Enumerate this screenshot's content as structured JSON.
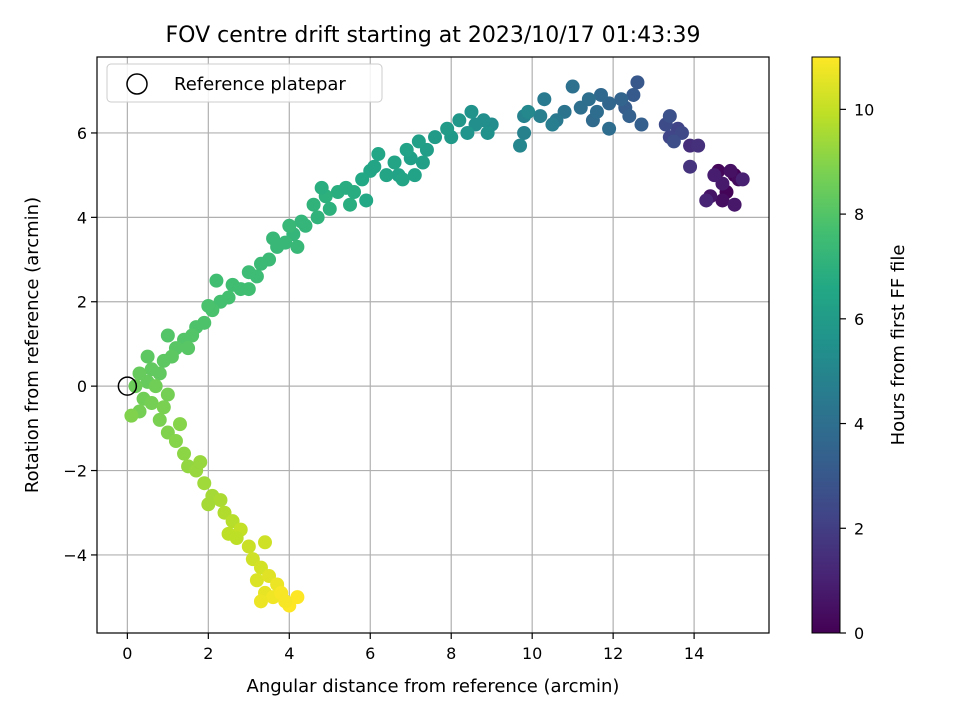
{
  "chart_data": {
    "type": "scatter",
    "title": "FOV centre drift starting at 2023/10/17 01:43:39",
    "xlabel": "Angular distance from reference (arcmin)",
    "ylabel": "Rotation from reference (arcmin)",
    "xlim": [
      -0.75,
      15.85
    ],
    "ylim": [
      -5.85,
      7.8
    ],
    "xticks": [
      0,
      2,
      4,
      6,
      8,
      10,
      12,
      14
    ],
    "yticks": [
      -4,
      -2,
      0,
      2,
      4,
      6
    ],
    "grid": true,
    "legend": {
      "position": "top-left",
      "entries": [
        "Reference platepar"
      ]
    },
    "reference_point": {
      "x": 0,
      "y": 0
    },
    "colorbar": {
      "label": "Hours from first FF file",
      "range": [
        0,
        11
      ],
      "ticks": [
        0,
        2,
        4,
        6,
        8,
        10
      ],
      "colormap": "viridis"
    },
    "points": [
      {
        "x": 15.0,
        "y": 5.0,
        "t": 0.0
      },
      {
        "x": 14.8,
        "y": 4.6,
        "t": 0.1
      },
      {
        "x": 14.6,
        "y": 5.1,
        "t": 0.2
      },
      {
        "x": 15.1,
        "y": 4.9,
        "t": 0.3
      },
      {
        "x": 14.7,
        "y": 4.4,
        "t": 0.4
      },
      {
        "x": 14.9,
        "y": 5.1,
        "t": 0.5
      },
      {
        "x": 14.4,
        "y": 4.5,
        "t": 0.6
      },
      {
        "x": 15.0,
        "y": 4.3,
        "t": 0.7
      },
      {
        "x": 14.7,
        "y": 4.8,
        "t": 0.8
      },
      {
        "x": 14.5,
        "y": 5.0,
        "t": 0.9
      },
      {
        "x": 15.2,
        "y": 4.9,
        "t": 1.0
      },
      {
        "x": 14.3,
        "y": 4.4,
        "t": 1.1
      },
      {
        "x": 13.9,
        "y": 5.7,
        "t": 1.4
      },
      {
        "x": 14.1,
        "y": 5.7,
        "t": 1.5
      },
      {
        "x": 13.9,
        "y": 5.2,
        "t": 1.6
      },
      {
        "x": 13.6,
        "y": 6.1,
        "t": 2.2
      },
      {
        "x": 13.4,
        "y": 5.9,
        "t": 2.3
      },
      {
        "x": 13.7,
        "y": 6.0,
        "t": 2.4
      },
      {
        "x": 13.3,
        "y": 6.2,
        "t": 2.5
      },
      {
        "x": 13.5,
        "y": 5.8,
        "t": 2.6
      },
      {
        "x": 13.4,
        "y": 6.4,
        "t": 2.7
      },
      {
        "x": 12.6,
        "y": 7.2,
        "t": 3.0
      },
      {
        "x": 12.5,
        "y": 6.9,
        "t": 3.1
      },
      {
        "x": 12.3,
        "y": 6.6,
        "t": 3.2
      },
      {
        "x": 12.7,
        "y": 6.2,
        "t": 3.3
      },
      {
        "x": 12.4,
        "y": 6.4,
        "t": 3.4
      },
      {
        "x": 12.2,
        "y": 6.8,
        "t": 3.5
      },
      {
        "x": 11.9,
        "y": 6.7,
        "t": 3.6
      },
      {
        "x": 11.7,
        "y": 6.9,
        "t": 3.7
      },
      {
        "x": 11.5,
        "y": 6.3,
        "t": 3.8
      },
      {
        "x": 11.9,
        "y": 6.1,
        "t": 3.9
      },
      {
        "x": 11.2,
        "y": 6.6,
        "t": 4.0
      },
      {
        "x": 11.0,
        "y": 7.1,
        "t": 4.1
      },
      {
        "x": 10.8,
        "y": 6.5,
        "t": 4.2
      },
      {
        "x": 11.4,
        "y": 6.8,
        "t": 4.0
      },
      {
        "x": 11.6,
        "y": 6.5,
        "t": 3.9
      },
      {
        "x": 10.6,
        "y": 6.3,
        "t": 4.4
      },
      {
        "x": 10.3,
        "y": 6.8,
        "t": 4.5
      },
      {
        "x": 10.5,
        "y": 6.2,
        "t": 4.6
      },
      {
        "x": 10.2,
        "y": 6.4,
        "t": 4.7
      },
      {
        "x": 9.8,
        "y": 6.0,
        "t": 4.8
      },
      {
        "x": 9.8,
        "y": 6.4,
        "t": 4.9
      },
      {
        "x": 9.7,
        "y": 5.7,
        "t": 5.0
      },
      {
        "x": 9.9,
        "y": 6.5,
        "t": 5.1
      },
      {
        "x": 9.0,
        "y": 6.2,
        "t": 5.3
      },
      {
        "x": 8.8,
        "y": 6.3,
        "t": 5.4
      },
      {
        "x": 8.9,
        "y": 6.0,
        "t": 5.5
      },
      {
        "x": 8.6,
        "y": 6.2,
        "t": 5.4
      },
      {
        "x": 8.5,
        "y": 6.5,
        "t": 5.6
      },
      {
        "x": 8.4,
        "y": 6.0,
        "t": 5.7
      },
      {
        "x": 8.2,
        "y": 6.3,
        "t": 5.8
      },
      {
        "x": 8.0,
        "y": 5.9,
        "t": 5.9
      },
      {
        "x": 7.9,
        "y": 6.1,
        "t": 6.0
      },
      {
        "x": 7.6,
        "y": 5.9,
        "t": 6.0
      },
      {
        "x": 7.4,
        "y": 5.6,
        "t": 6.1
      },
      {
        "x": 7.2,
        "y": 5.8,
        "t": 6.2
      },
      {
        "x": 7.0,
        "y": 5.4,
        "t": 6.2
      },
      {
        "x": 6.9,
        "y": 5.6,
        "t": 6.3
      },
      {
        "x": 6.7,
        "y": 5.0,
        "t": 6.3
      },
      {
        "x": 6.6,
        "y": 5.3,
        "t": 6.4
      },
      {
        "x": 6.4,
        "y": 5.0,
        "t": 6.4
      },
      {
        "x": 6.2,
        "y": 5.5,
        "t": 6.5
      },
      {
        "x": 6.0,
        "y": 5.1,
        "t": 6.5
      },
      {
        "x": 5.8,
        "y": 4.9,
        "t": 6.6
      },
      {
        "x": 7.1,
        "y": 5.0,
        "t": 6.3
      },
      {
        "x": 6.8,
        "y": 4.9,
        "t": 6.4
      },
      {
        "x": 7.3,
        "y": 5.3,
        "t": 6.2
      },
      {
        "x": 5.6,
        "y": 4.6,
        "t": 6.8
      },
      {
        "x": 5.5,
        "y": 4.3,
        "t": 6.9
      },
      {
        "x": 5.2,
        "y": 4.6,
        "t": 6.9
      },
      {
        "x": 5.0,
        "y": 4.2,
        "t": 7.0
      },
      {
        "x": 4.9,
        "y": 4.5,
        "t": 7.0
      },
      {
        "x": 4.7,
        "y": 4.0,
        "t": 7.1
      },
      {
        "x": 4.6,
        "y": 4.3,
        "t": 7.1
      },
      {
        "x": 4.4,
        "y": 3.8,
        "t": 7.2
      },
      {
        "x": 4.3,
        "y": 3.9,
        "t": 7.2
      },
      {
        "x": 4.1,
        "y": 3.6,
        "t": 7.2
      },
      {
        "x": 4.0,
        "y": 3.8,
        "t": 7.3
      },
      {
        "x": 3.9,
        "y": 3.4,
        "t": 7.3
      },
      {
        "x": 3.7,
        "y": 3.3,
        "t": 7.3
      },
      {
        "x": 3.5,
        "y": 3.0,
        "t": 7.4
      },
      {
        "x": 3.3,
        "y": 2.9,
        "t": 7.4
      },
      {
        "x": 3.2,
        "y": 2.6,
        "t": 7.5
      },
      {
        "x": 3.0,
        "y": 2.7,
        "t": 7.5
      },
      {
        "x": 2.8,
        "y": 2.3,
        "t": 7.6
      },
      {
        "x": 2.6,
        "y": 2.4,
        "t": 7.6
      },
      {
        "x": 2.5,
        "y": 2.1,
        "t": 7.7
      },
      {
        "x": 2.3,
        "y": 2.0,
        "t": 7.7
      },
      {
        "x": 2.1,
        "y": 1.8,
        "t": 7.8
      },
      {
        "x": 2.0,
        "y": 1.9,
        "t": 7.8
      },
      {
        "x": 1.9,
        "y": 1.5,
        "t": 7.9
      },
      {
        "x": 1.7,
        "y": 1.4,
        "t": 7.9
      },
      {
        "x": 1.6,
        "y": 1.2,
        "t": 8.0
      },
      {
        "x": 1.4,
        "y": 1.1,
        "t": 8.0
      },
      {
        "x": 1.2,
        "y": 0.9,
        "t": 8.1
      },
      {
        "x": 1.1,
        "y": 0.7,
        "t": 8.2
      },
      {
        "x": 0.9,
        "y": 0.6,
        "t": 8.2
      },
      {
        "x": 0.8,
        "y": 0.3,
        "t": 8.3
      },
      {
        "x": 0.6,
        "y": 0.4,
        "t": 8.3
      },
      {
        "x": 0.5,
        "y": 0.1,
        "t": 8.4
      },
      {
        "x": 0.3,
        "y": 0.3,
        "t": 8.4
      },
      {
        "x": 0.2,
        "y": 0.0,
        "t": 8.5
      },
      {
        "x": 0.4,
        "y": -0.3,
        "t": 8.6
      },
      {
        "x": 0.3,
        "y": -0.6,
        "t": 8.7
      },
      {
        "x": 0.6,
        "y": -0.4,
        "t": 8.7
      },
      {
        "x": 0.8,
        "y": -0.8,
        "t": 8.8
      },
      {
        "x": 0.9,
        "y": -0.5,
        "t": 8.8
      },
      {
        "x": 1.0,
        "y": -1.1,
        "t": 8.9
      },
      {
        "x": 1.2,
        "y": -1.3,
        "t": 9.0
      },
      {
        "x": 1.4,
        "y": -1.6,
        "t": 9.1
      },
      {
        "x": 1.5,
        "y": -1.9,
        "t": 9.2
      },
      {
        "x": 1.7,
        "y": -2.0,
        "t": 9.3
      },
      {
        "x": 1.9,
        "y": -2.3,
        "t": 9.4
      },
      {
        "x": 1.8,
        "y": -1.8,
        "t": 9.3
      },
      {
        "x": 2.1,
        "y": -2.6,
        "t": 9.5
      },
      {
        "x": 2.3,
        "y": -2.7,
        "t": 9.6
      },
      {
        "x": 2.4,
        "y": -3.0,
        "t": 9.7
      },
      {
        "x": 2.6,
        "y": -3.2,
        "t": 9.8
      },
      {
        "x": 2.5,
        "y": -3.5,
        "t": 9.9
      },
      {
        "x": 2.8,
        "y": -3.4,
        "t": 10.0
      },
      {
        "x": 3.0,
        "y": -3.8,
        "t": 10.1
      },
      {
        "x": 3.1,
        "y": -4.1,
        "t": 10.2
      },
      {
        "x": 3.3,
        "y": -4.3,
        "t": 10.3
      },
      {
        "x": 3.2,
        "y": -4.6,
        "t": 10.4
      },
      {
        "x": 3.5,
        "y": -4.5,
        "t": 10.5
      },
      {
        "x": 3.4,
        "y": -4.9,
        "t": 10.6
      },
      {
        "x": 3.7,
        "y": -4.7,
        "t": 10.7
      },
      {
        "x": 3.6,
        "y": -5.0,
        "t": 10.8
      },
      {
        "x": 3.8,
        "y": -4.9,
        "t": 10.9
      },
      {
        "x": 4.0,
        "y": -5.2,
        "t": 11.0
      },
      {
        "x": 4.2,
        "y": -5.0,
        "t": 11.0
      },
      {
        "x": 3.9,
        "y": -5.1,
        "t": 10.9
      },
      {
        "x": 3.3,
        "y": -5.1,
        "t": 10.7
      },
      {
        "x": 1.0,
        "y": -0.2,
        "t": 8.7
      },
      {
        "x": 0.7,
        "y": 0.0,
        "t": 8.6
      },
      {
        "x": 1.3,
        "y": -0.9,
        "t": 9.0
      },
      {
        "x": 2.0,
        "y": -2.8,
        "t": 9.5
      },
      {
        "x": 2.7,
        "y": -3.6,
        "t": 9.9
      },
      {
        "x": 3.4,
        "y": -3.7,
        "t": 10.2
      },
      {
        "x": 0.1,
        "y": -0.7,
        "t": 8.9
      },
      {
        "x": 0.5,
        "y": 0.7,
        "t": 8.2
      },
      {
        "x": 1.0,
        "y": 1.2,
        "t": 8.0
      },
      {
        "x": 1.5,
        "y": 0.9,
        "t": 8.1
      },
      {
        "x": 2.2,
        "y": 2.5,
        "t": 7.6
      },
      {
        "x": 3.0,
        "y": 2.3,
        "t": 7.6
      },
      {
        "x": 3.6,
        "y": 3.5,
        "t": 7.3
      },
      {
        "x": 4.2,
        "y": 3.3,
        "t": 7.3
      },
      {
        "x": 4.8,
        "y": 4.7,
        "t": 6.9
      },
      {
        "x": 5.4,
        "y": 4.7,
        "t": 6.8
      },
      {
        "x": 5.9,
        "y": 4.4,
        "t": 6.6
      },
      {
        "x": 6.1,
        "y": 5.2,
        "t": 6.4
      }
    ]
  }
}
